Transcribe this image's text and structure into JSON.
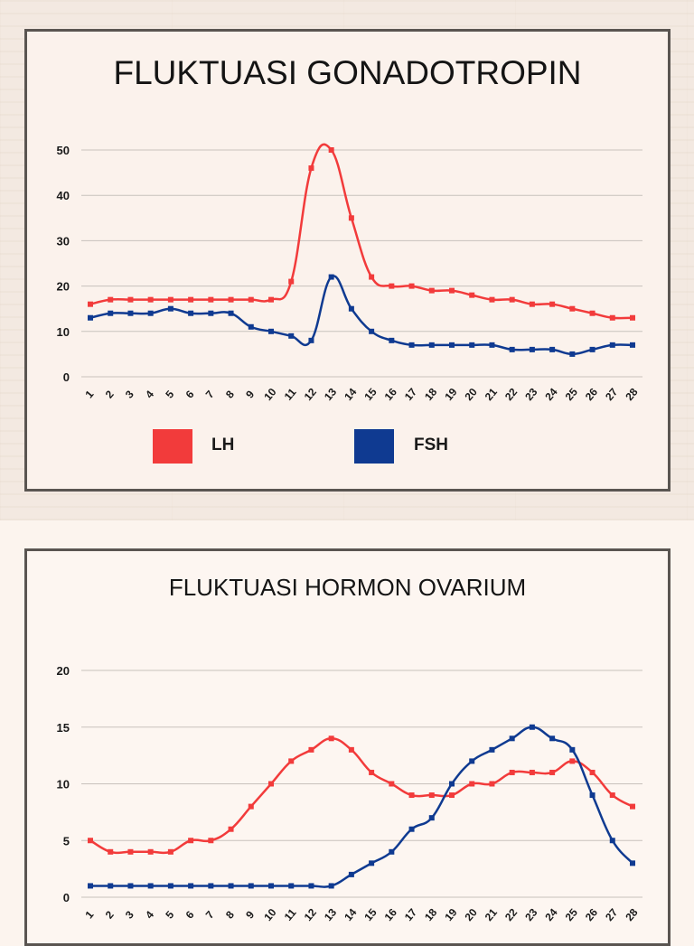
{
  "colors": {
    "lh": "#f23b3b",
    "fsh": "#0f3a91",
    "grid": "#c8c1bc",
    "text": "#141414"
  },
  "chart_data": [
    {
      "type": "line",
      "title": "FLUKTUASI GONADOTROPIN",
      "categories": [
        "1",
        "2",
        "3",
        "4",
        "5",
        "6",
        "7",
        "8",
        "9",
        "10",
        "11",
        "12",
        "13",
        "14",
        "15",
        "16",
        "17",
        "18",
        "19",
        "20",
        "21",
        "22",
        "23",
        "24",
        "25",
        "26",
        "27",
        "28"
      ],
      "ylim": [
        0,
        50
      ],
      "yticks": [
        0,
        10,
        20,
        30,
        40,
        50
      ],
      "grid": true,
      "legend": "bottom",
      "series": [
        {
          "name": "LH",
          "color": "#f23b3b",
          "values": [
            16,
            17,
            17,
            17,
            17,
            17,
            17,
            17,
            17,
            17,
            21,
            46,
            50,
            35,
            22,
            20,
            20,
            19,
            19,
            18,
            17,
            17,
            16,
            16,
            15,
            14,
            13,
            13
          ]
        },
        {
          "name": "FSH",
          "color": "#0f3a91",
          "values": [
            13,
            14,
            14,
            14,
            15,
            14,
            14,
            14,
            11,
            10,
            9,
            8,
            22,
            15,
            10,
            8,
            7,
            7,
            7,
            7,
            7,
            6,
            6,
            6,
            5,
            6,
            7,
            7
          ]
        }
      ]
    },
    {
      "type": "line",
      "title": "FLUKTUASI HORMON OVARIUM",
      "categories": [
        "1",
        "2",
        "3",
        "4",
        "5",
        "6",
        "7",
        "8",
        "9",
        "10",
        "11",
        "12",
        "13",
        "14",
        "15",
        "16",
        "17",
        "18",
        "19",
        "20",
        "21",
        "22",
        "23",
        "24",
        "25",
        "26",
        "27",
        "28"
      ],
      "ylim": [
        0,
        20
      ],
      "yticks": [
        0,
        5,
        10,
        15,
        20
      ],
      "grid": true,
      "legend": "none",
      "series": [
        {
          "color": "#f23b3b",
          "values": [
            5,
            4,
            4,
            4,
            4,
            5,
            5,
            6,
            8,
            10,
            12,
            13,
            14,
            13,
            11,
            10,
            9,
            9,
            9,
            10,
            10,
            11,
            11,
            11,
            12,
            11,
            9,
            8
          ]
        },
        {
          "color": "#0f3a91",
          "values": [
            1,
            1,
            1,
            1,
            1,
            1,
            1,
            1,
            1,
            1,
            1,
            1,
            1,
            2,
            3,
            4,
            6,
            7,
            10,
            12,
            13,
            14,
            15,
            14,
            13,
            9,
            5,
            3
          ]
        }
      ]
    }
  ]
}
